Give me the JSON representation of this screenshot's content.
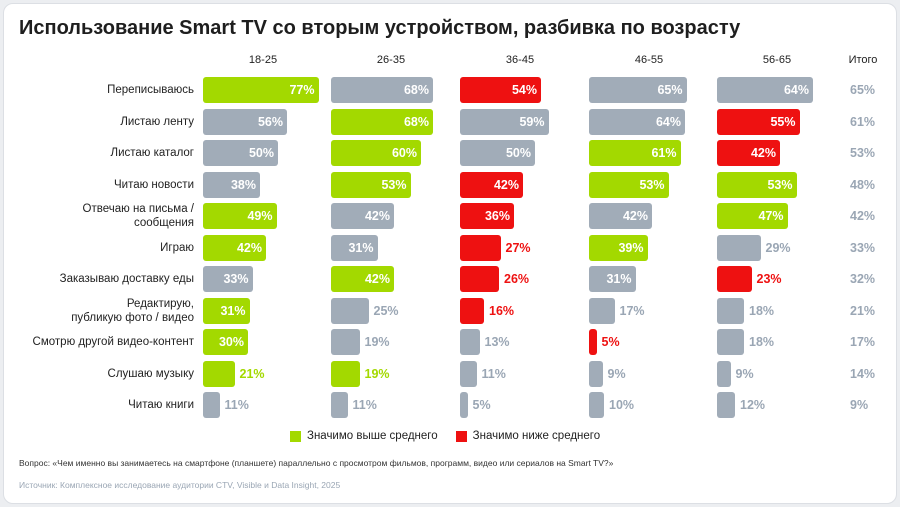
{
  "title": "Использование Smart TV со вторым устройством, разбивка по возрасту",
  "total_header": "Итого",
  "legend": {
    "above": "Значимо выше среднего",
    "below": "Значимо ниже среднего"
  },
  "colors": {
    "above": "#a3d900",
    "below": "#ee1111",
    "neutral": "#a1acb8",
    "total_text": "#9aa6b4"
  },
  "question": "Вопрос: «Чем именно вы занимаетесь на смартфоне (планшете) параллельно с просмотром фильмов, программ, видео или сериалов на Smart TV?»",
  "source": "Источник: Комплексное исследование аудитории CTV, Visible и Data Insight, 2025",
  "chart_data": {
    "type": "bar",
    "unit": "%",
    "categories": [
      "Переписываюсь",
      "Листаю ленту",
      "Листаю каталог",
      "Читаю новости",
      "Отвечаю на письма / сообщения",
      "Играю",
      "Заказываю доставку еды",
      "Редактирую, публикую фото / видео",
      "Смотрю другой видео-контент",
      "Слушаю музыку",
      "Читаю книги"
    ],
    "series": [
      {
        "name": "18-25",
        "values": [
          77,
          56,
          50,
          38,
          49,
          42,
          33,
          31,
          30,
          21,
          11
        ],
        "significance": [
          "above",
          "neutral",
          "neutral",
          "neutral",
          "above",
          "above",
          "neutral",
          "above",
          "above",
          "above",
          "neutral"
        ]
      },
      {
        "name": "26-35",
        "values": [
          68,
          68,
          60,
          53,
          42,
          31,
          42,
          25,
          19,
          19,
          11
        ],
        "significance": [
          "neutral",
          "above",
          "above",
          "above",
          "neutral",
          "neutral",
          "above",
          "neutral",
          "neutral",
          "above",
          "neutral"
        ]
      },
      {
        "name": "36-45",
        "values": [
          54,
          59,
          50,
          42,
          36,
          27,
          26,
          16,
          13,
          11,
          5
        ],
        "significance": [
          "below",
          "neutral",
          "neutral",
          "below",
          "below",
          "below",
          "below",
          "below",
          "neutral",
          "neutral",
          "neutral"
        ]
      },
      {
        "name": "46-55",
        "values": [
          65,
          64,
          61,
          53,
          42,
          39,
          31,
          17,
          5,
          9,
          10
        ],
        "significance": [
          "neutral",
          "neutral",
          "above",
          "above",
          "neutral",
          "above",
          "neutral",
          "neutral",
          "below",
          "neutral",
          "neutral"
        ]
      },
      {
        "name": "56-65",
        "values": [
          64,
          55,
          42,
          53,
          47,
          29,
          23,
          18,
          18,
          9,
          12
        ],
        "significance": [
          "neutral",
          "below",
          "below",
          "above",
          "above",
          "neutral",
          "below",
          "neutral",
          "neutral",
          "neutral",
          "neutral"
        ]
      }
    ],
    "totals": [
      65,
      61,
      53,
      48,
      42,
      33,
      32,
      21,
      17,
      14,
      9
    ]
  }
}
